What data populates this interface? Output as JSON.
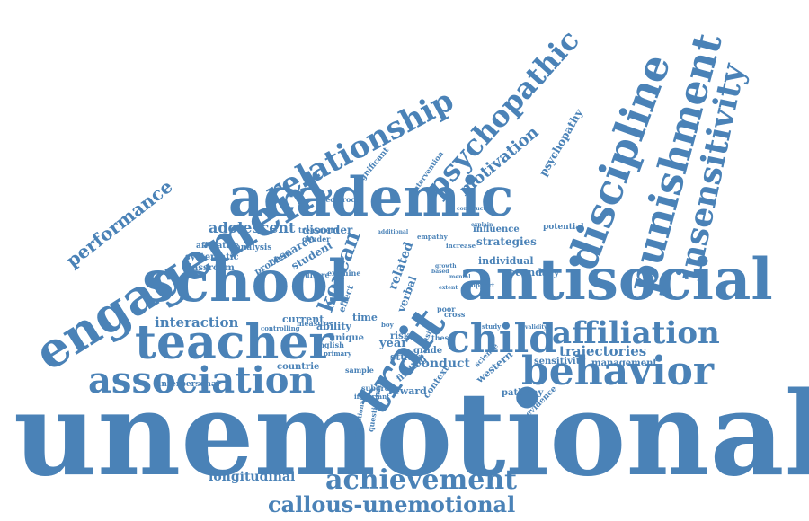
{
  "colors": {
    "word": "#4a82b7",
    "background": "#ffffff"
  },
  "words": [
    "unemotional",
    "callous-unemotional",
    "achievement",
    "longitudinal",
    "association",
    "teacher",
    "school",
    "engagement",
    "academic",
    "antisocial",
    "behavior",
    "child",
    "affiliation",
    "trait",
    "korean",
    "discipline",
    "punishment",
    "insensitivity",
    "psychopathic",
    "relationship",
    "performance",
    "motivation",
    "adolescent",
    "interaction",
    "trajectories",
    "strategies",
    "conduct",
    "secondary",
    "related",
    "verbal",
    "psychopathy",
    "research",
    "student",
    "disorder",
    "systematic",
    "classroom",
    "affiliative",
    "analysis",
    "problem",
    "influence",
    "potential",
    "individual",
    "management",
    "sensitivity",
    "pathway",
    "evidence",
    "context",
    "reward",
    "finding",
    "study",
    "grade",
    "western",
    "year",
    "time",
    "current",
    "ability",
    "unique",
    "english",
    "countrie",
    "sample",
    "interpersonal",
    "intervention",
    "significant",
    "reciprocal",
    "treatment",
    "gender",
    "effect",
    "empathy",
    "risk",
    "poor",
    "cross",
    "asia",
    "model",
    "examine",
    "culture",
    "support",
    "measure",
    "controlling",
    "subgroup",
    "questionnaire",
    "educational",
    "primary",
    "thesis",
    "science",
    "boy",
    "increase",
    "study",
    "validity",
    "additional",
    "important",
    "explain",
    "growth",
    "based",
    "mental",
    "construct",
    "extent",
    "type"
  ]
}
